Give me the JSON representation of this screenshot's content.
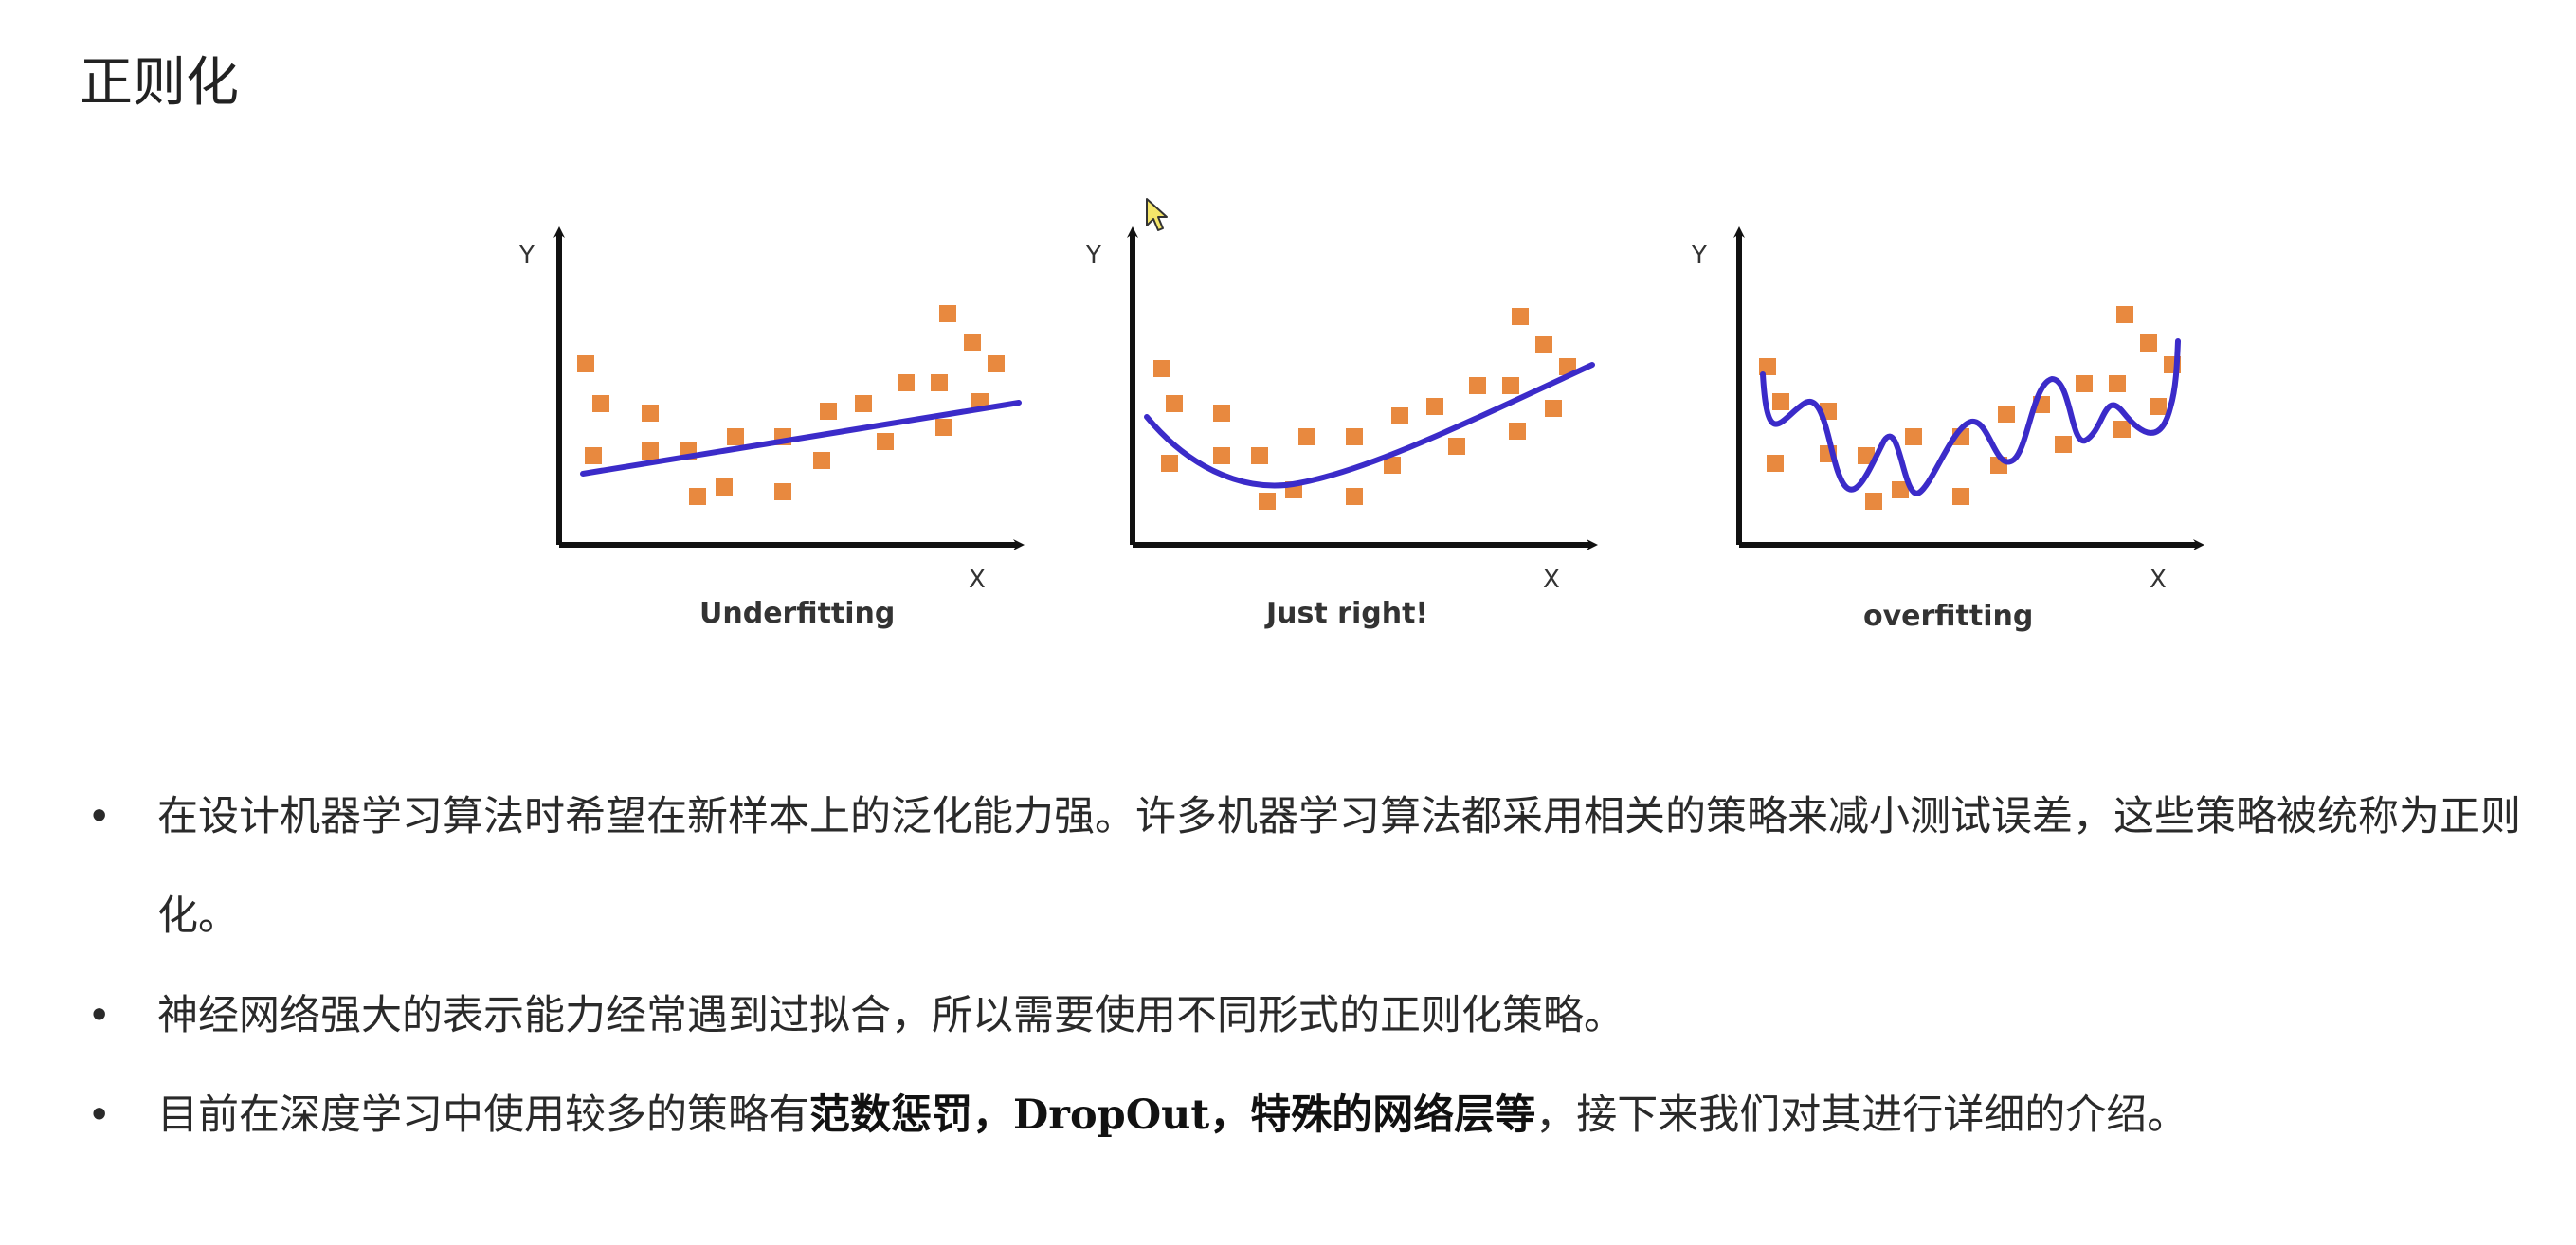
{
  "title": "正则化",
  "figure": {
    "panels": [
      {
        "caption": "Underfitting",
        "y_axis": "Y",
        "x_axis": "X"
      },
      {
        "caption": "Just right!",
        "y_axis": "Y",
        "x_axis": "X"
      },
      {
        "caption": "overfitting",
        "y_axis": "Y",
        "x_axis": "X"
      }
    ],
    "point_color": "#e8893f",
    "curve_color": "#3b2bc9"
  },
  "bullets": {
    "b1": "在设计机器学习算法时希望在新样本上的泛化能力强。许多机器学习算法都采用相关的策略来减小测试误差，这些策略被统称为正则化。",
    "b2": "神经网络强大的表示能力经常遇到过拟合，所以需要使用不同形式的正则化策略。",
    "b3_prefix": "目前在深度学习中使用较多的策略有",
    "b3_bold1": "范数惩罚，DropOut，特殊的网络层等",
    "b3_suffix": "，接下来我们对其进行详细的介绍。"
  },
  "bullet_glyph": "•"
}
